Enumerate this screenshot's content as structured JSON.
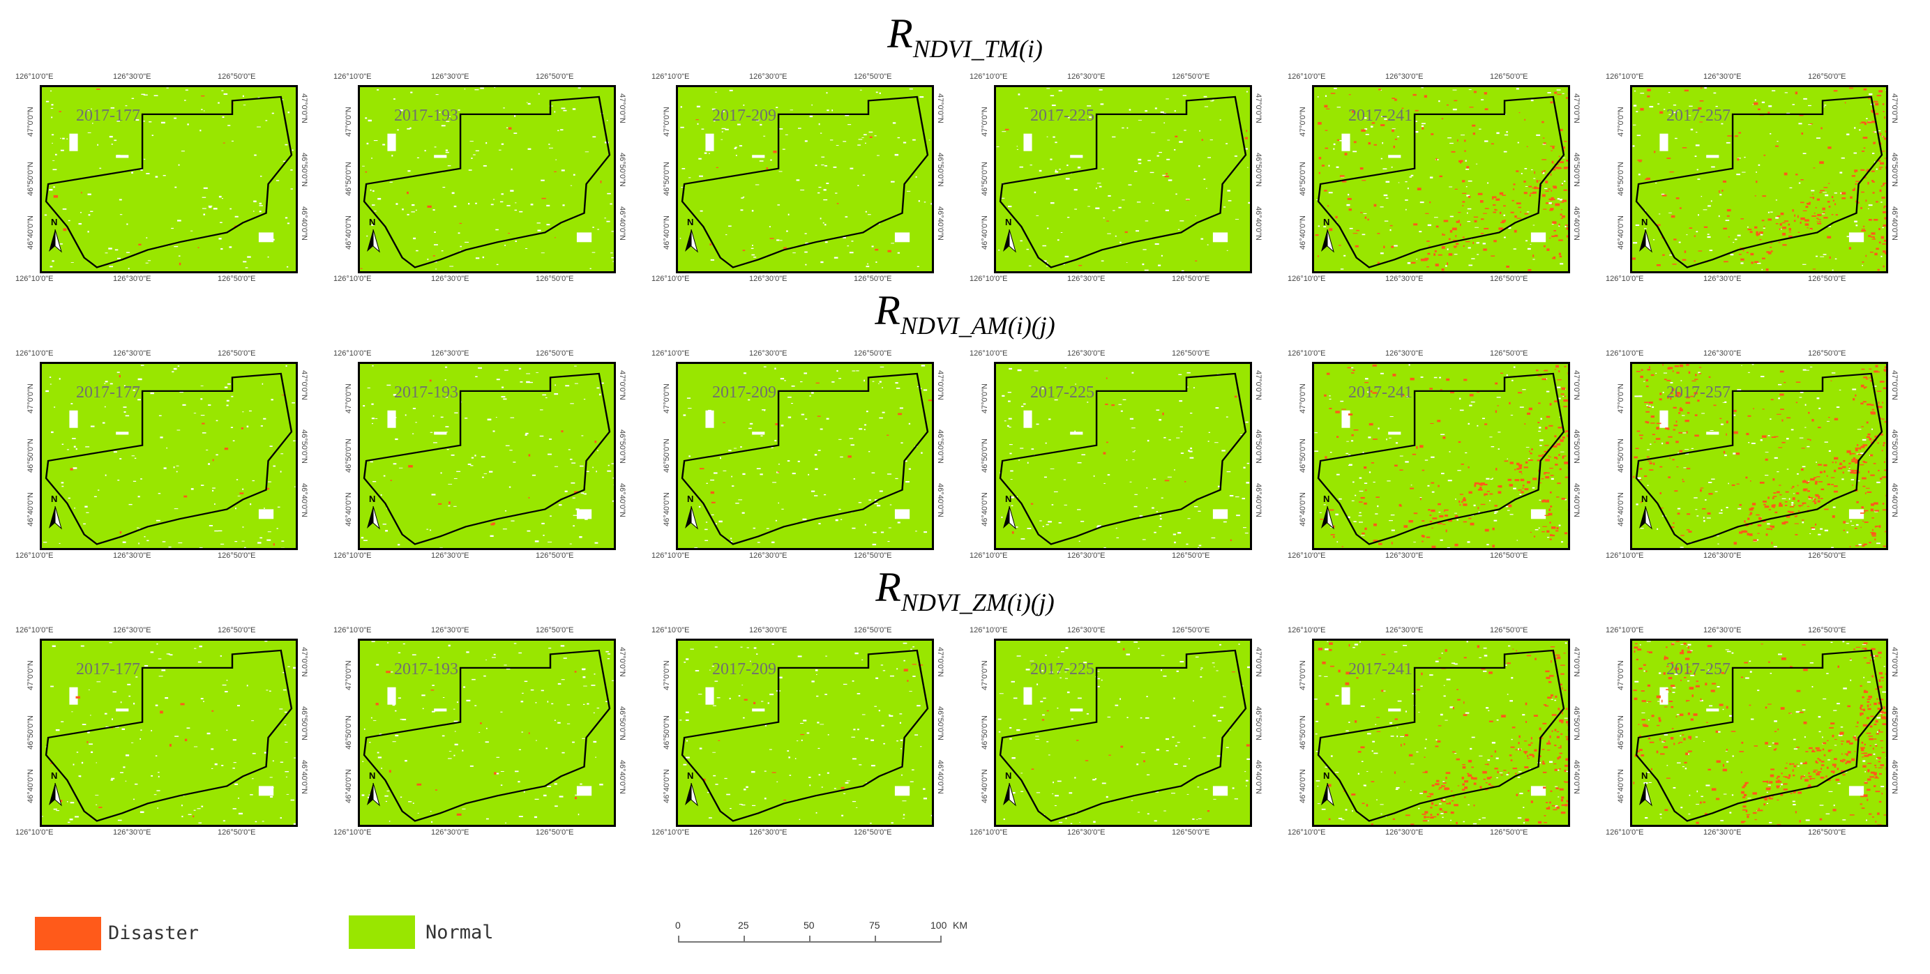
{
  "row_titles": [
    {
      "main": "R",
      "sub": "NDVI_TM(i)"
    },
    {
      "main": "R",
      "sub": "NDVI_AM(i)(j)"
    },
    {
      "main": "R",
      "sub": "NDVI_ZM(i)(j)"
    }
  ],
  "panel_labels": [
    "2017-177",
    "2017-193",
    "2017-209",
    "2017-225",
    "2017-241",
    "2017-257"
  ],
  "north_arrow_label": "N",
  "axis_ticks": {
    "lon": [
      "126°10'0\"E",
      "126°30'0\"E",
      "126°50'0\"E"
    ],
    "lat": [
      "47°0'0\"N",
      "46°50'0\"N",
      "46°40'0\"N"
    ]
  },
  "legend": [
    {
      "label": "Disaster",
      "color": "#ff5a1a"
    },
    {
      "label": "Normal",
      "color": "#99e600"
    }
  ],
  "scale_bar": {
    "ticks": [
      "0",
      "25",
      "50",
      "75",
      "100"
    ],
    "unit": "KM"
  },
  "disaster_intensity": [
    [
      0,
      0,
      0,
      0,
      2,
      2
    ],
    [
      0,
      0,
      0,
      0,
      2,
      3
    ],
    [
      0,
      0,
      0,
      0,
      2,
      3
    ]
  ]
}
